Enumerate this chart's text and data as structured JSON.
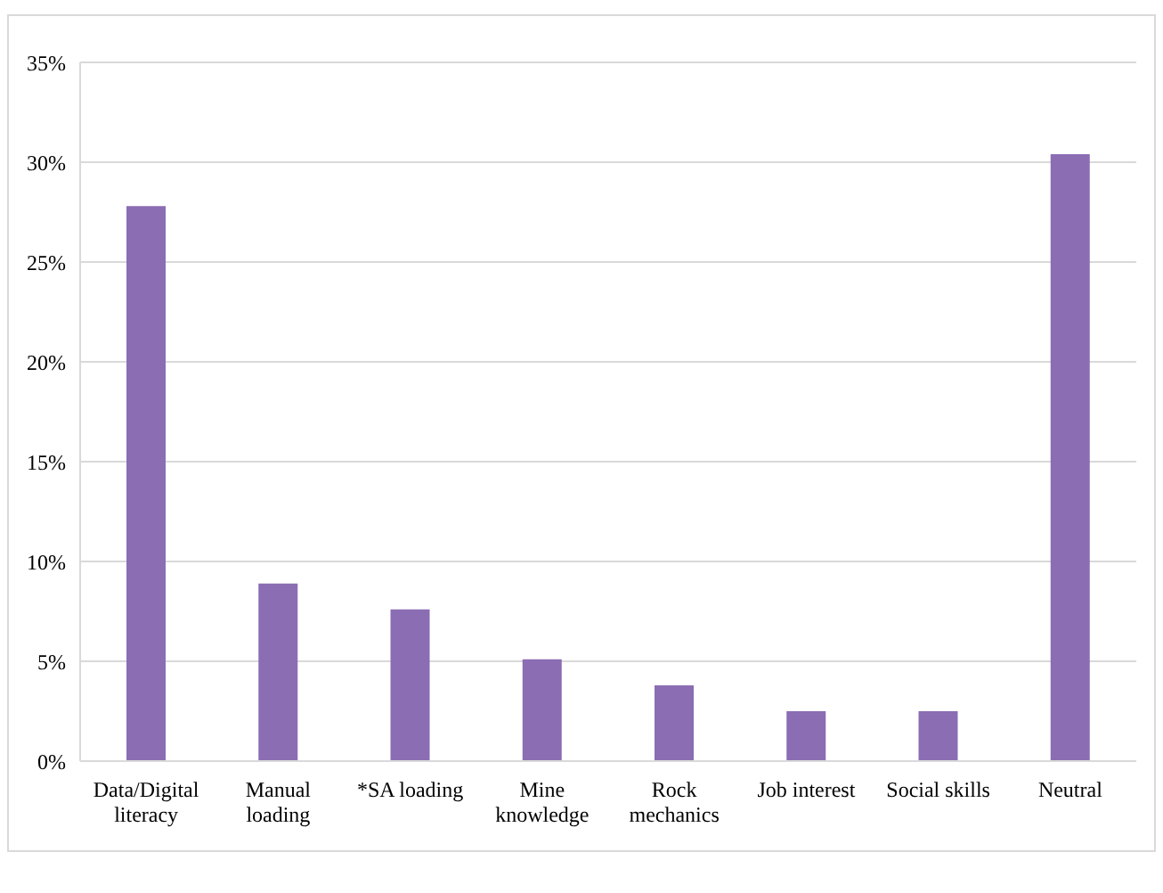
{
  "chart_data": {
    "type": "bar",
    "categories": [
      "Data/Digital literacy",
      "Manual loading",
      "*SA loading",
      "Mine knowledge",
      "Rock mechanics",
      "Job interest",
      "Social skills",
      "Neutral"
    ],
    "values": [
      27.8,
      8.9,
      7.6,
      5.1,
      3.8,
      2.5,
      2.5,
      30.4
    ],
    "color": "#8b6db3",
    "ylim": [
      0,
      35
    ],
    "yticks": [
      {
        "value": 0,
        "label": "0%"
      },
      {
        "value": 5,
        "label": "5%"
      },
      {
        "value": 10,
        "label": "10%"
      },
      {
        "value": 15,
        "label": "15%"
      },
      {
        "value": 20,
        "label": "20%"
      },
      {
        "value": 25,
        "label": "25%"
      },
      {
        "value": 30,
        "label": "30%"
      },
      {
        "value": 35,
        "label": "35%"
      }
    ],
    "grid": "y",
    "legend": false
  }
}
